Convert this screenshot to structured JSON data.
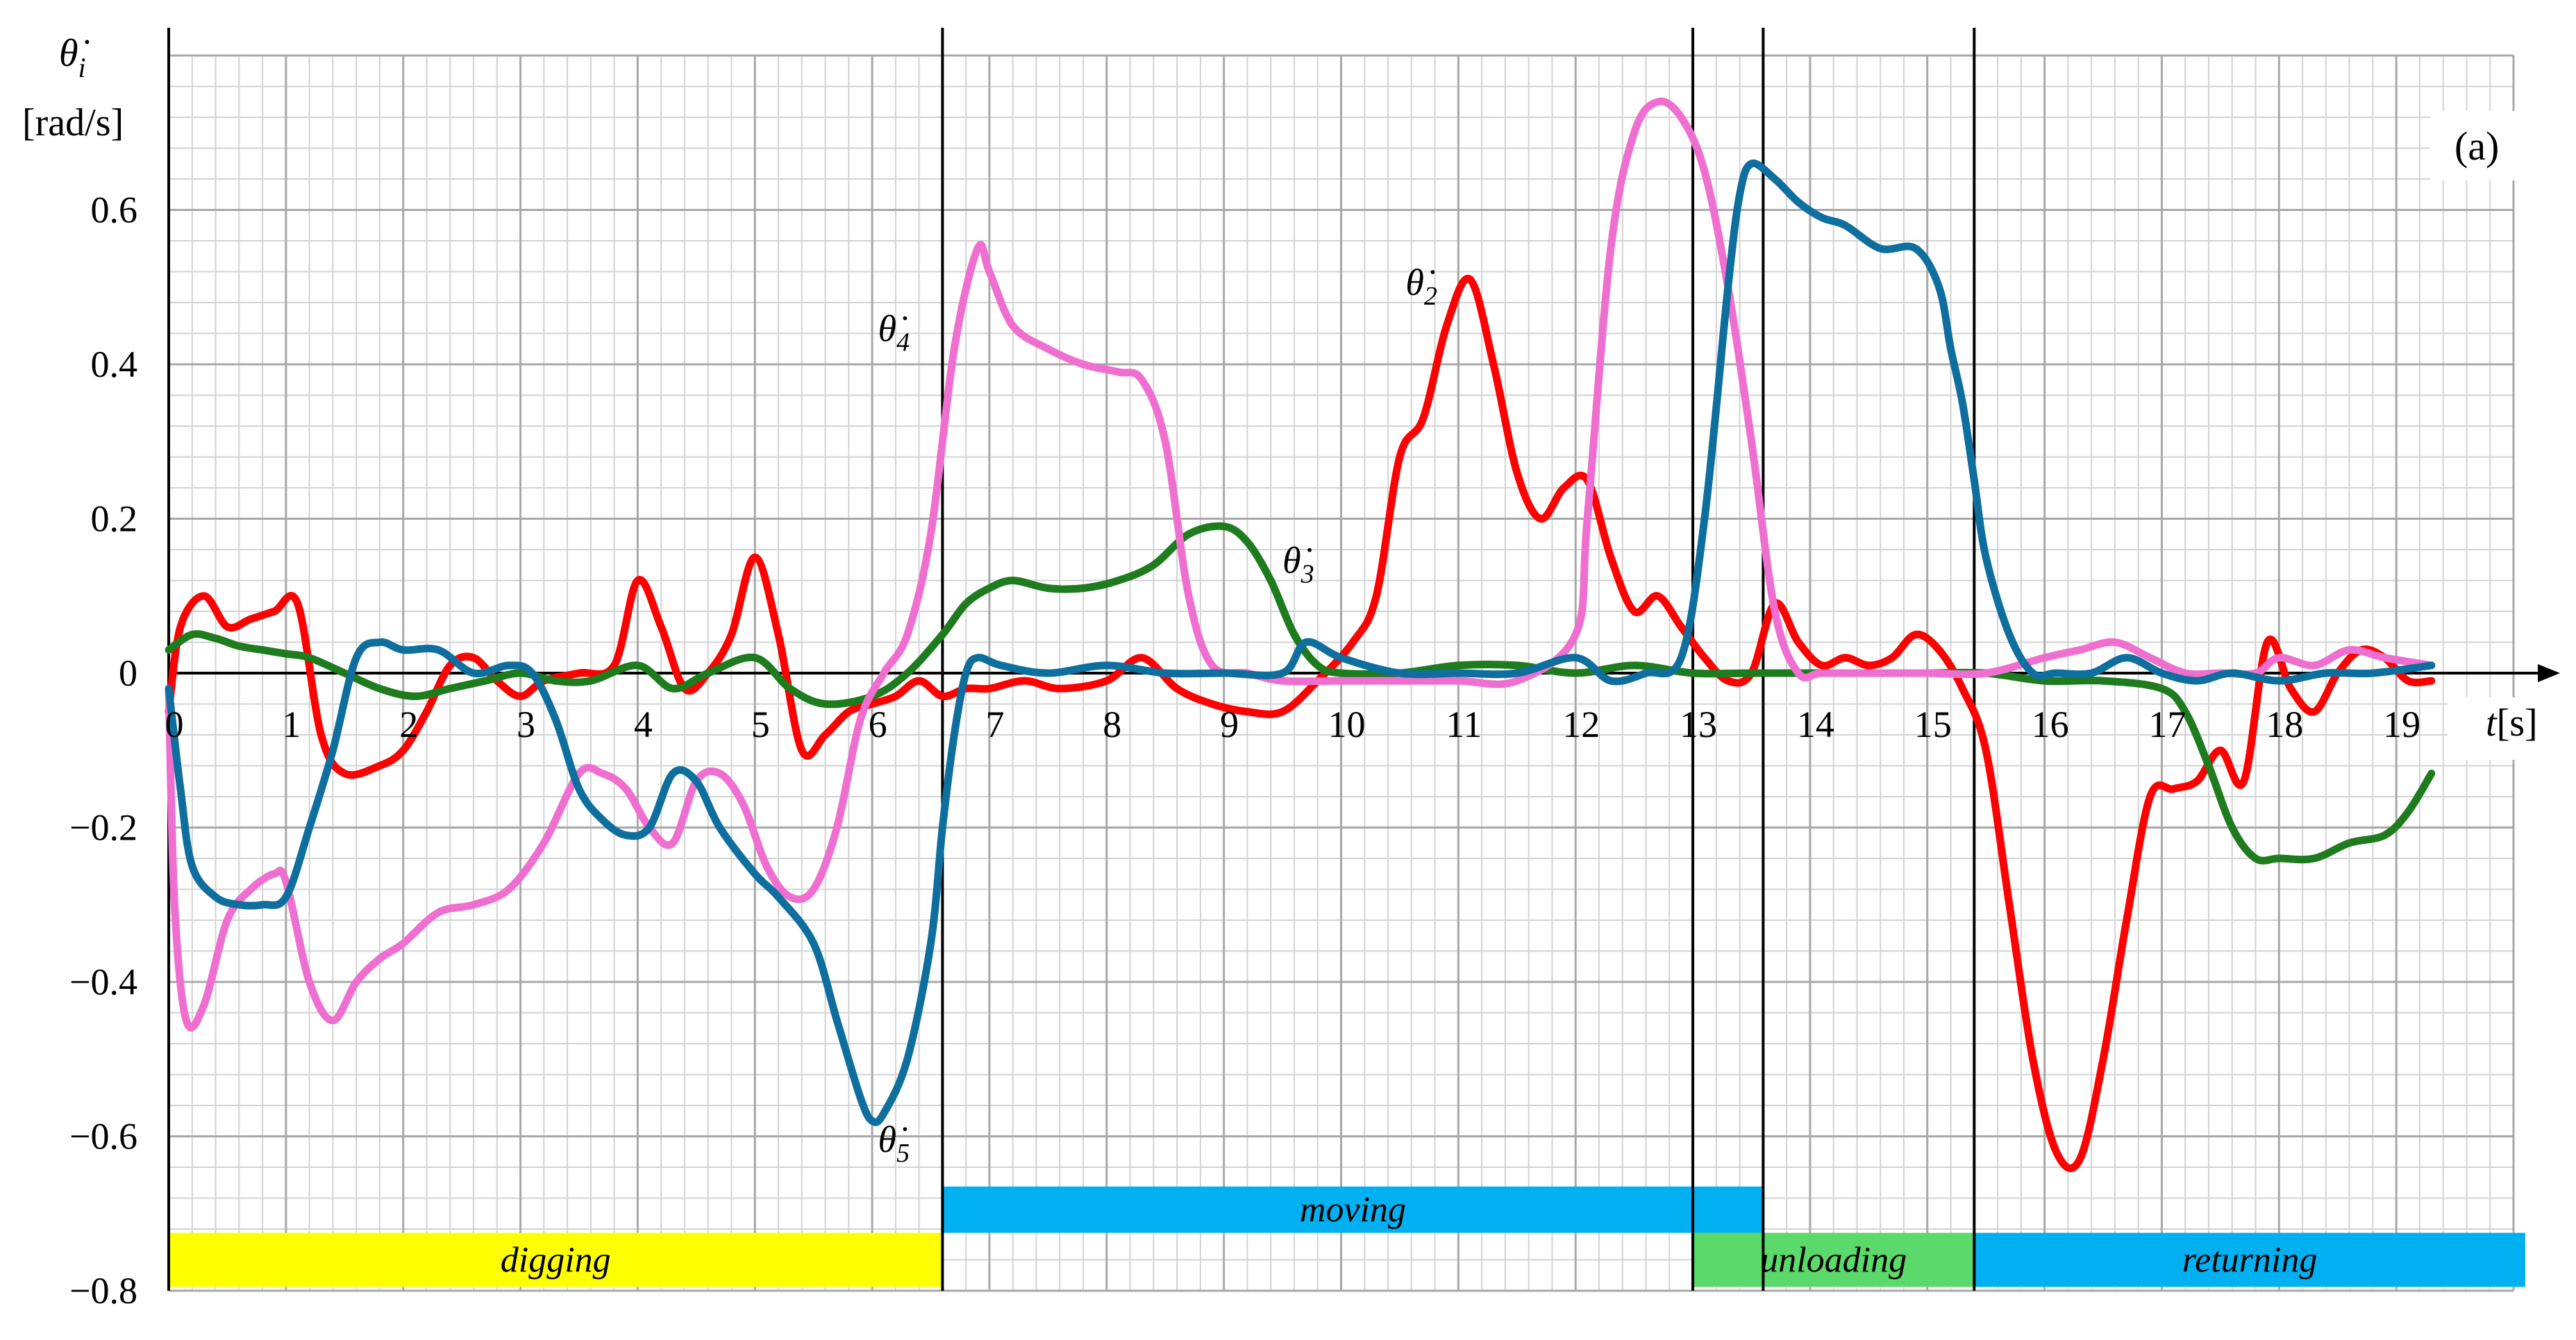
{
  "chart_data": {
    "type": "line",
    "panel_label": "(a)",
    "ylabel": "θ̇",
    "ylabel_subscript": "i",
    "yunit": "[rad/s]",
    "xlabel": "t",
    "xunit": "[s]",
    "xlim": [
      0,
      20
    ],
    "ylim": [
      -0.8,
      0.8
    ],
    "x_ticks": [
      "0",
      "1",
      "2",
      "3",
      "4",
      "5",
      "6",
      "7",
      "8",
      "9",
      "10",
      "11",
      "12",
      "13",
      "14",
      "15",
      "16",
      "17",
      "18",
      "19"
    ],
    "y_ticks": [
      {
        "value": -0.8,
        "label": "−0.8"
      },
      {
        "value": -0.6,
        "label": "−0.6"
      },
      {
        "value": -0.4,
        "label": "−0.4"
      },
      {
        "value": -0.2,
        "label": "−0.2"
      },
      {
        "value": 0,
        "label": "0"
      },
      {
        "value": 0.2,
        "label": "0.2"
      },
      {
        "value": 0.4,
        "label": "0.4"
      },
      {
        "value": 0.6,
        "label": "0.6"
      }
    ],
    "grid": true,
    "phase_lines": [
      6.6,
      13.0,
      13.6,
      15.4
    ],
    "phases": [
      {
        "label": "digging",
        "x0": 0,
        "x1": 6.6,
        "y0": -0.795,
        "y1": -0.725,
        "color": "#ffff00"
      },
      {
        "label": "moving",
        "x0": 6.6,
        "x1": 13.6,
        "y0": -0.725,
        "y1": -0.665,
        "color": "#00b0f0"
      },
      {
        "label": "unloading",
        "x0": 13.0,
        "x1": 15.4,
        "y0": -0.795,
        "y1": -0.725,
        "color": "#5bd96a"
      },
      {
        "label": "returning",
        "x0": 15.4,
        "x1": 20.1,
        "y0": -0.795,
        "y1": -0.725,
        "color": "#00b0f0"
      }
    ],
    "series": [
      {
        "name": "θ̇",
        "sub": "2",
        "color": "#ff0000",
        "label_pos": [
          10.55,
          0.49
        ],
        "x": [
          0,
          0.1,
          0.3,
          0.5,
          0.7,
          0.9,
          1.1,
          1.3,
          1.5,
          1.8,
          2.0,
          2.2,
          2.4,
          2.6,
          2.8,
          3.0,
          3.2,
          3.5,
          3.8,
          4.0,
          4.2,
          4.4,
          4.6,
          4.8,
          5.0,
          5.2,
          5.4,
          5.6,
          5.8,
          6.0,
          6.2,
          6.4,
          6.6,
          6.8,
          7.0,
          7.3,
          7.6,
          8.0,
          8.3,
          8.6,
          8.9,
          9.2,
          9.5,
          9.8,
          10.1,
          10.3,
          10.5,
          10.7,
          10.9,
          11.1,
          11.3,
          11.5,
          11.7,
          11.9,
          12.1,
          12.3,
          12.5,
          12.7,
          12.9,
          13.1,
          13.3,
          13.5,
          13.7,
          13.9,
          14.1,
          14.3,
          14.5,
          14.7,
          14.9,
          15.1,
          15.3,
          15.5,
          15.7,
          15.9,
          16.1,
          16.3,
          16.5,
          16.7,
          16.9,
          17.1,
          17.3,
          17.5,
          17.7,
          17.9,
          18.1,
          18.3,
          18.5,
          18.7,
          18.9,
          19.1,
          19.3
        ],
        "y": [
          -0.05,
          0.06,
          0.1,
          0.06,
          0.07,
          0.08,
          0.09,
          -0.08,
          -0.13,
          -0.12,
          -0.1,
          -0.05,
          0.01,
          0.02,
          -0.01,
          -0.03,
          -0.01,
          0.0,
          0.01,
          0.12,
          0.06,
          -0.02,
          0.0,
          0.05,
          0.15,
          0.05,
          -0.1,
          -0.08,
          -0.05,
          -0.04,
          -0.03,
          -0.01,
          -0.03,
          -0.02,
          -0.02,
          -0.01,
          -0.02,
          -0.01,
          0.02,
          -0.02,
          -0.04,
          -0.05,
          -0.05,
          -0.01,
          0.04,
          0.1,
          0.28,
          0.33,
          0.45,
          0.51,
          0.4,
          0.26,
          0.2,
          0.24,
          0.25,
          0.15,
          0.08,
          0.1,
          0.06,
          0.02,
          -0.01,
          0.0,
          0.09,
          0.04,
          0.01,
          0.02,
          0.01,
          0.02,
          0.05,
          0.03,
          -0.02,
          -0.1,
          -0.3,
          -0.5,
          -0.62,
          -0.63,
          -0.5,
          -0.32,
          -0.16,
          -0.15,
          -0.14,
          -0.1,
          -0.14,
          0.04,
          -0.02,
          -0.05,
          0.0,
          0.03,
          0.02,
          -0.01,
          -0.01
        ]
      },
      {
        "name": "θ̇",
        "sub": "3",
        "color": "#1e7b1e",
        "label_pos": [
          9.5,
          0.13
        ],
        "x": [
          0,
          0.2,
          0.4,
          0.6,
          0.8,
          1.0,
          1.2,
          1.5,
          1.8,
          2.1,
          2.4,
          2.7,
          3.0,
          3.3,
          3.6,
          4.0,
          4.3,
          4.6,
          5.0,
          5.3,
          5.6,
          6.0,
          6.3,
          6.6,
          6.8,
          7.0,
          7.2,
          7.5,
          7.8,
          8.1,
          8.4,
          8.7,
          9.0,
          9.2,
          9.4,
          9.6,
          9.8,
          10.0,
          10.5,
          11.0,
          11.5,
          12.0,
          12.5,
          13.0,
          13.5,
          14.0,
          14.5,
          15.0,
          15.5,
          16.0,
          16.5,
          17.0,
          17.2,
          17.4,
          17.6,
          17.8,
          18.0,
          18.3,
          18.6,
          18.9,
          19.1,
          19.3
        ],
        "y": [
          0.03,
          0.05,
          0.045,
          0.035,
          0.03,
          0.025,
          0.02,
          0.0,
          -0.02,
          -0.03,
          -0.02,
          -0.01,
          0.0,
          -0.01,
          -0.01,
          0.01,
          -0.02,
          0.0,
          0.02,
          -0.02,
          -0.04,
          -0.03,
          0.0,
          0.05,
          0.09,
          0.11,
          0.12,
          0.11,
          0.11,
          0.12,
          0.14,
          0.18,
          0.19,
          0.17,
          0.12,
          0.05,
          0.01,
          0.0,
          0.0,
          0.01,
          0.01,
          0.0,
          0.01,
          0.0,
          0.0,
          0.0,
          0.0,
          0.0,
          0.0,
          -0.01,
          -0.01,
          -0.02,
          -0.05,
          -0.12,
          -0.2,
          -0.24,
          -0.24,
          -0.24,
          -0.22,
          -0.21,
          -0.18,
          -0.13
        ]
      },
      {
        "name": "θ̇",
        "sub": "4",
        "color": "#ef6fd0",
        "label_pos": [
          6.05,
          0.43
        ],
        "x": [
          0,
          0.05,
          0.15,
          0.3,
          0.5,
          0.7,
          0.9,
          1.0,
          1.2,
          1.4,
          1.6,
          1.8,
          2.0,
          2.3,
          2.6,
          2.9,
          3.2,
          3.5,
          3.7,
          3.9,
          4.1,
          4.3,
          4.5,
          4.7,
          4.9,
          5.1,
          5.3,
          5.5,
          5.7,
          5.9,
          6.1,
          6.3,
          6.5,
          6.7,
          6.9,
          7.0,
          7.2,
          7.5,
          7.8,
          8.1,
          8.3,
          8.5,
          8.7,
          8.9,
          9.2,
          9.5,
          10.0,
          10.5,
          11.0,
          11.5,
          12.0,
          12.1,
          12.3,
          12.5,
          12.7,
          12.9,
          13.1,
          13.3,
          13.5,
          13.7,
          13.9,
          14.1,
          14.5,
          15.0,
          15.5,
          16.0,
          16.3,
          16.6,
          16.9,
          17.2,
          17.5,
          17.8,
          18.0,
          18.3,
          18.6,
          18.9,
          19.3
        ],
        "y": [
          -0.02,
          -0.3,
          -0.45,
          -0.43,
          -0.32,
          -0.28,
          -0.26,
          -0.27,
          -0.4,
          -0.45,
          -0.4,
          -0.37,
          -0.35,
          -0.31,
          -0.3,
          -0.28,
          -0.22,
          -0.13,
          -0.13,
          -0.15,
          -0.2,
          -0.22,
          -0.14,
          -0.13,
          -0.17,
          -0.25,
          -0.29,
          -0.28,
          -0.2,
          -0.06,
          0.0,
          0.05,
          0.18,
          0.42,
          0.55,
          0.52,
          0.45,
          0.42,
          0.4,
          0.39,
          0.38,
          0.3,
          0.1,
          0.01,
          0.0,
          -0.01,
          -0.01,
          -0.01,
          -0.01,
          -0.01,
          0.05,
          0.2,
          0.55,
          0.7,
          0.74,
          0.72,
          0.65,
          0.5,
          0.3,
          0.08,
          0.0,
          0.0,
          0.0,
          0.0,
          0.0,
          0.02,
          0.03,
          0.04,
          0.02,
          0.0,
          0.0,
          0.0,
          0.02,
          0.01,
          0.03,
          0.02,
          0.01
        ]
      },
      {
        "name": "θ̇",
        "sub": "5",
        "color": "#0e6e9e",
        "label_pos": [
          6.05,
          -0.62
        ],
        "x": [
          0,
          0.1,
          0.2,
          0.4,
          0.6,
          0.8,
          1.0,
          1.2,
          1.4,
          1.6,
          1.8,
          2.0,
          2.3,
          2.6,
          2.9,
          3.1,
          3.3,
          3.5,
          3.7,
          3.9,
          4.1,
          4.3,
          4.5,
          4.7,
          5.0,
          5.2,
          5.5,
          5.7,
          5.9,
          6.0,
          6.1,
          6.3,
          6.5,
          6.6,
          6.7,
          6.8,
          6.9,
          7.1,
          7.5,
          8.0,
          8.5,
          9.0,
          9.5,
          9.7,
          10.0,
          10.5,
          11.0,
          11.5,
          12.0,
          12.3,
          12.6,
          12.9,
          13.1,
          13.3,
          13.4,
          13.5,
          13.7,
          13.9,
          14.1,
          14.3,
          14.6,
          14.9,
          15.1,
          15.2,
          15.3,
          15.4,
          15.5,
          15.7,
          15.9,
          16.1,
          16.4,
          16.7,
          17.0,
          17.3,
          17.6,
          18.0,
          18.4,
          18.8,
          19.3
        ],
        "y": [
          -0.02,
          -0.15,
          -0.25,
          -0.29,
          -0.3,
          -0.3,
          -0.29,
          -0.2,
          -0.1,
          0.02,
          0.04,
          0.03,
          0.03,
          0.0,
          0.01,
          0.0,
          -0.06,
          -0.15,
          -0.19,
          -0.21,
          -0.2,
          -0.13,
          -0.14,
          -0.2,
          -0.26,
          -0.29,
          -0.35,
          -0.45,
          -0.55,
          -0.58,
          -0.57,
          -0.5,
          -0.35,
          -0.2,
          -0.08,
          0.0,
          0.02,
          0.01,
          0.0,
          0.01,
          0.0,
          0.0,
          0.0,
          0.04,
          0.02,
          0.0,
          0.0,
          0.0,
          0.02,
          -0.01,
          0.0,
          0.02,
          0.2,
          0.5,
          0.62,
          0.66,
          0.64,
          0.61,
          0.59,
          0.58,
          0.55,
          0.55,
          0.5,
          0.42,
          0.35,
          0.25,
          0.15,
          0.05,
          0.0,
          0.0,
          0.0,
          0.02,
          0.0,
          -0.01,
          0.0,
          -0.01,
          0.0,
          0.0,
          0.01
        ]
      }
    ]
  }
}
